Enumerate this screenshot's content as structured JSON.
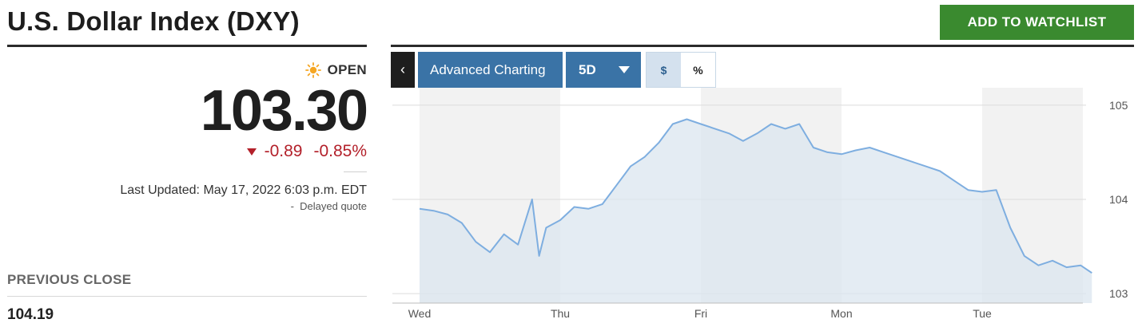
{
  "header": {
    "title": "U.S. Dollar Index (DXY)",
    "watchlist_label": "ADD TO WATCHLIST"
  },
  "quote": {
    "status": "OPEN",
    "status_icon": "sun-icon",
    "price": "103.30",
    "change": "-0.89",
    "change_pct": "-0.85%",
    "last_updated": "Last Updated: May 17, 2022 6:03 p.m. EDT",
    "delayed": "-  Delayed quote",
    "previous_close_label": "PREVIOUS CLOSE",
    "previous_close_value": "104.19"
  },
  "toolbar": {
    "back_label": "‹",
    "advanced_label": "Advanced Charting",
    "range_label": "5D",
    "dollar_label": "$",
    "percent_label": "%"
  },
  "colors": {
    "line": "#7eaee0",
    "fill": "#dbe6ef",
    "band": "#f2f2f2",
    "down": "#b3202a",
    "accent": "#3a73a6",
    "watchlist": "#3a8a2f"
  },
  "chart_data": {
    "type": "area",
    "x_labels": [
      "Wed",
      "Thu",
      "Fri",
      "Mon",
      "Tue"
    ],
    "ylim": [
      102.9,
      105.1
    ],
    "y_ticks": [
      103,
      104,
      105
    ],
    "x": [
      0,
      0.1,
      0.2,
      0.3,
      0.4,
      0.5,
      0.6,
      0.7,
      0.8,
      0.85,
      0.9,
      1.0,
      1.1,
      1.2,
      1.3,
      1.4,
      1.5,
      1.6,
      1.7,
      1.8,
      1.9,
      2.0,
      2.1,
      2.2,
      2.3,
      2.4,
      2.5,
      2.6,
      2.7,
      2.8,
      2.9,
      3.0,
      3.1,
      3.2,
      3.3,
      3.4,
      3.5,
      3.6,
      3.7,
      3.8,
      3.9,
      4.0,
      4.1,
      4.2,
      4.3,
      4.4,
      4.5,
      4.6,
      4.7,
      4.78
    ],
    "values": [
      103.9,
      103.88,
      103.84,
      103.75,
      103.55,
      103.44,
      103.63,
      103.52,
      104.0,
      103.4,
      103.7,
      103.78,
      103.92,
      103.9,
      103.95,
      104.15,
      104.35,
      104.45,
      104.6,
      104.8,
      104.85,
      104.8,
      104.75,
      104.7,
      104.62,
      104.7,
      104.8,
      104.75,
      104.8,
      104.55,
      104.5,
      104.48,
      104.52,
      104.55,
      104.5,
      104.45,
      104.4,
      104.35,
      104.3,
      104.2,
      104.1,
      104.08,
      104.1,
      103.7,
      103.4,
      103.3,
      103.35,
      103.28,
      103.3,
      103.22
    ],
    "grid": true
  }
}
